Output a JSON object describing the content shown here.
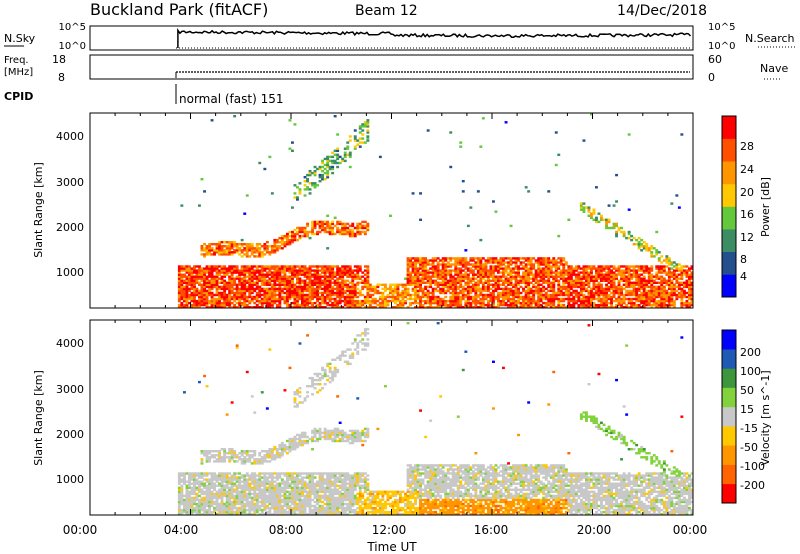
{
  "header": {
    "title": "Buckland Park (fitACF)",
    "beam": "Beam 12",
    "date": "14/Dec/2018"
  },
  "status_panels": {
    "nsky_label": "N.Sky",
    "nsky_ticks": [
      "10^5",
      "10^0"
    ],
    "nsearch_label": "N.Search",
    "nsearch_ticks": [
      "10^5",
      "10^0"
    ],
    "freq_label_1": "Freq.",
    "freq_label_2": "[MHz]",
    "freq_ticks": [
      "18",
      "8"
    ],
    "nave_label": "Nave",
    "nave_ticks": [
      "60",
      "0"
    ],
    "cpid_label": "CPID",
    "cpid_value": "normal (fast) 151"
  },
  "colors": {
    "power_scale": [
      "#0000ff",
      "#23508c",
      "#3c8c64",
      "#64c83c",
      "#ffc800",
      "#ff9600",
      "#ff5000",
      "#ff0000"
    ],
    "velocity_scale": [
      "#0000ff",
      "#1e5ab4",
      "#3c963c",
      "#82d23c",
      "#c8c8c8",
      "#ffc800",
      "#ff9600",
      "#ff6400",
      "#ff0000"
    ]
  },
  "chart_data": [
    {
      "type": "heatmap",
      "panel": "power",
      "ylabel": "Slant Range [km]",
      "yticks": [
        "4000",
        "3000",
        "2000",
        "1000"
      ],
      "ylim": [
        180,
        4500
      ],
      "xlim": [
        0,
        24
      ],
      "colorbar_label": "Power [dB]",
      "colorbar_ticks": [
        "28",
        "24",
        "20",
        "16",
        "12",
        "8",
        "4"
      ],
      "data_start_hour": 3.5
    },
    {
      "type": "heatmap",
      "panel": "velocity",
      "ylabel": "Slant Range [km]",
      "yticks": [
        "4000",
        "3000",
        "2000",
        "1000"
      ],
      "ylim": [
        180,
        4500
      ],
      "xlim": [
        0,
        24
      ],
      "xlabel": "Time UT",
      "xticks": [
        "00:00",
        "04:00",
        "08:00",
        "12:00",
        "16:00",
        "20:00",
        "00:00"
      ],
      "colorbar_label": "Velocity [m s^-1]",
      "colorbar_ticks": [
        "200",
        "100",
        "50",
        "15",
        "-15",
        "-50",
        "-100",
        "-200"
      ],
      "data_start_hour": 3.5
    }
  ]
}
